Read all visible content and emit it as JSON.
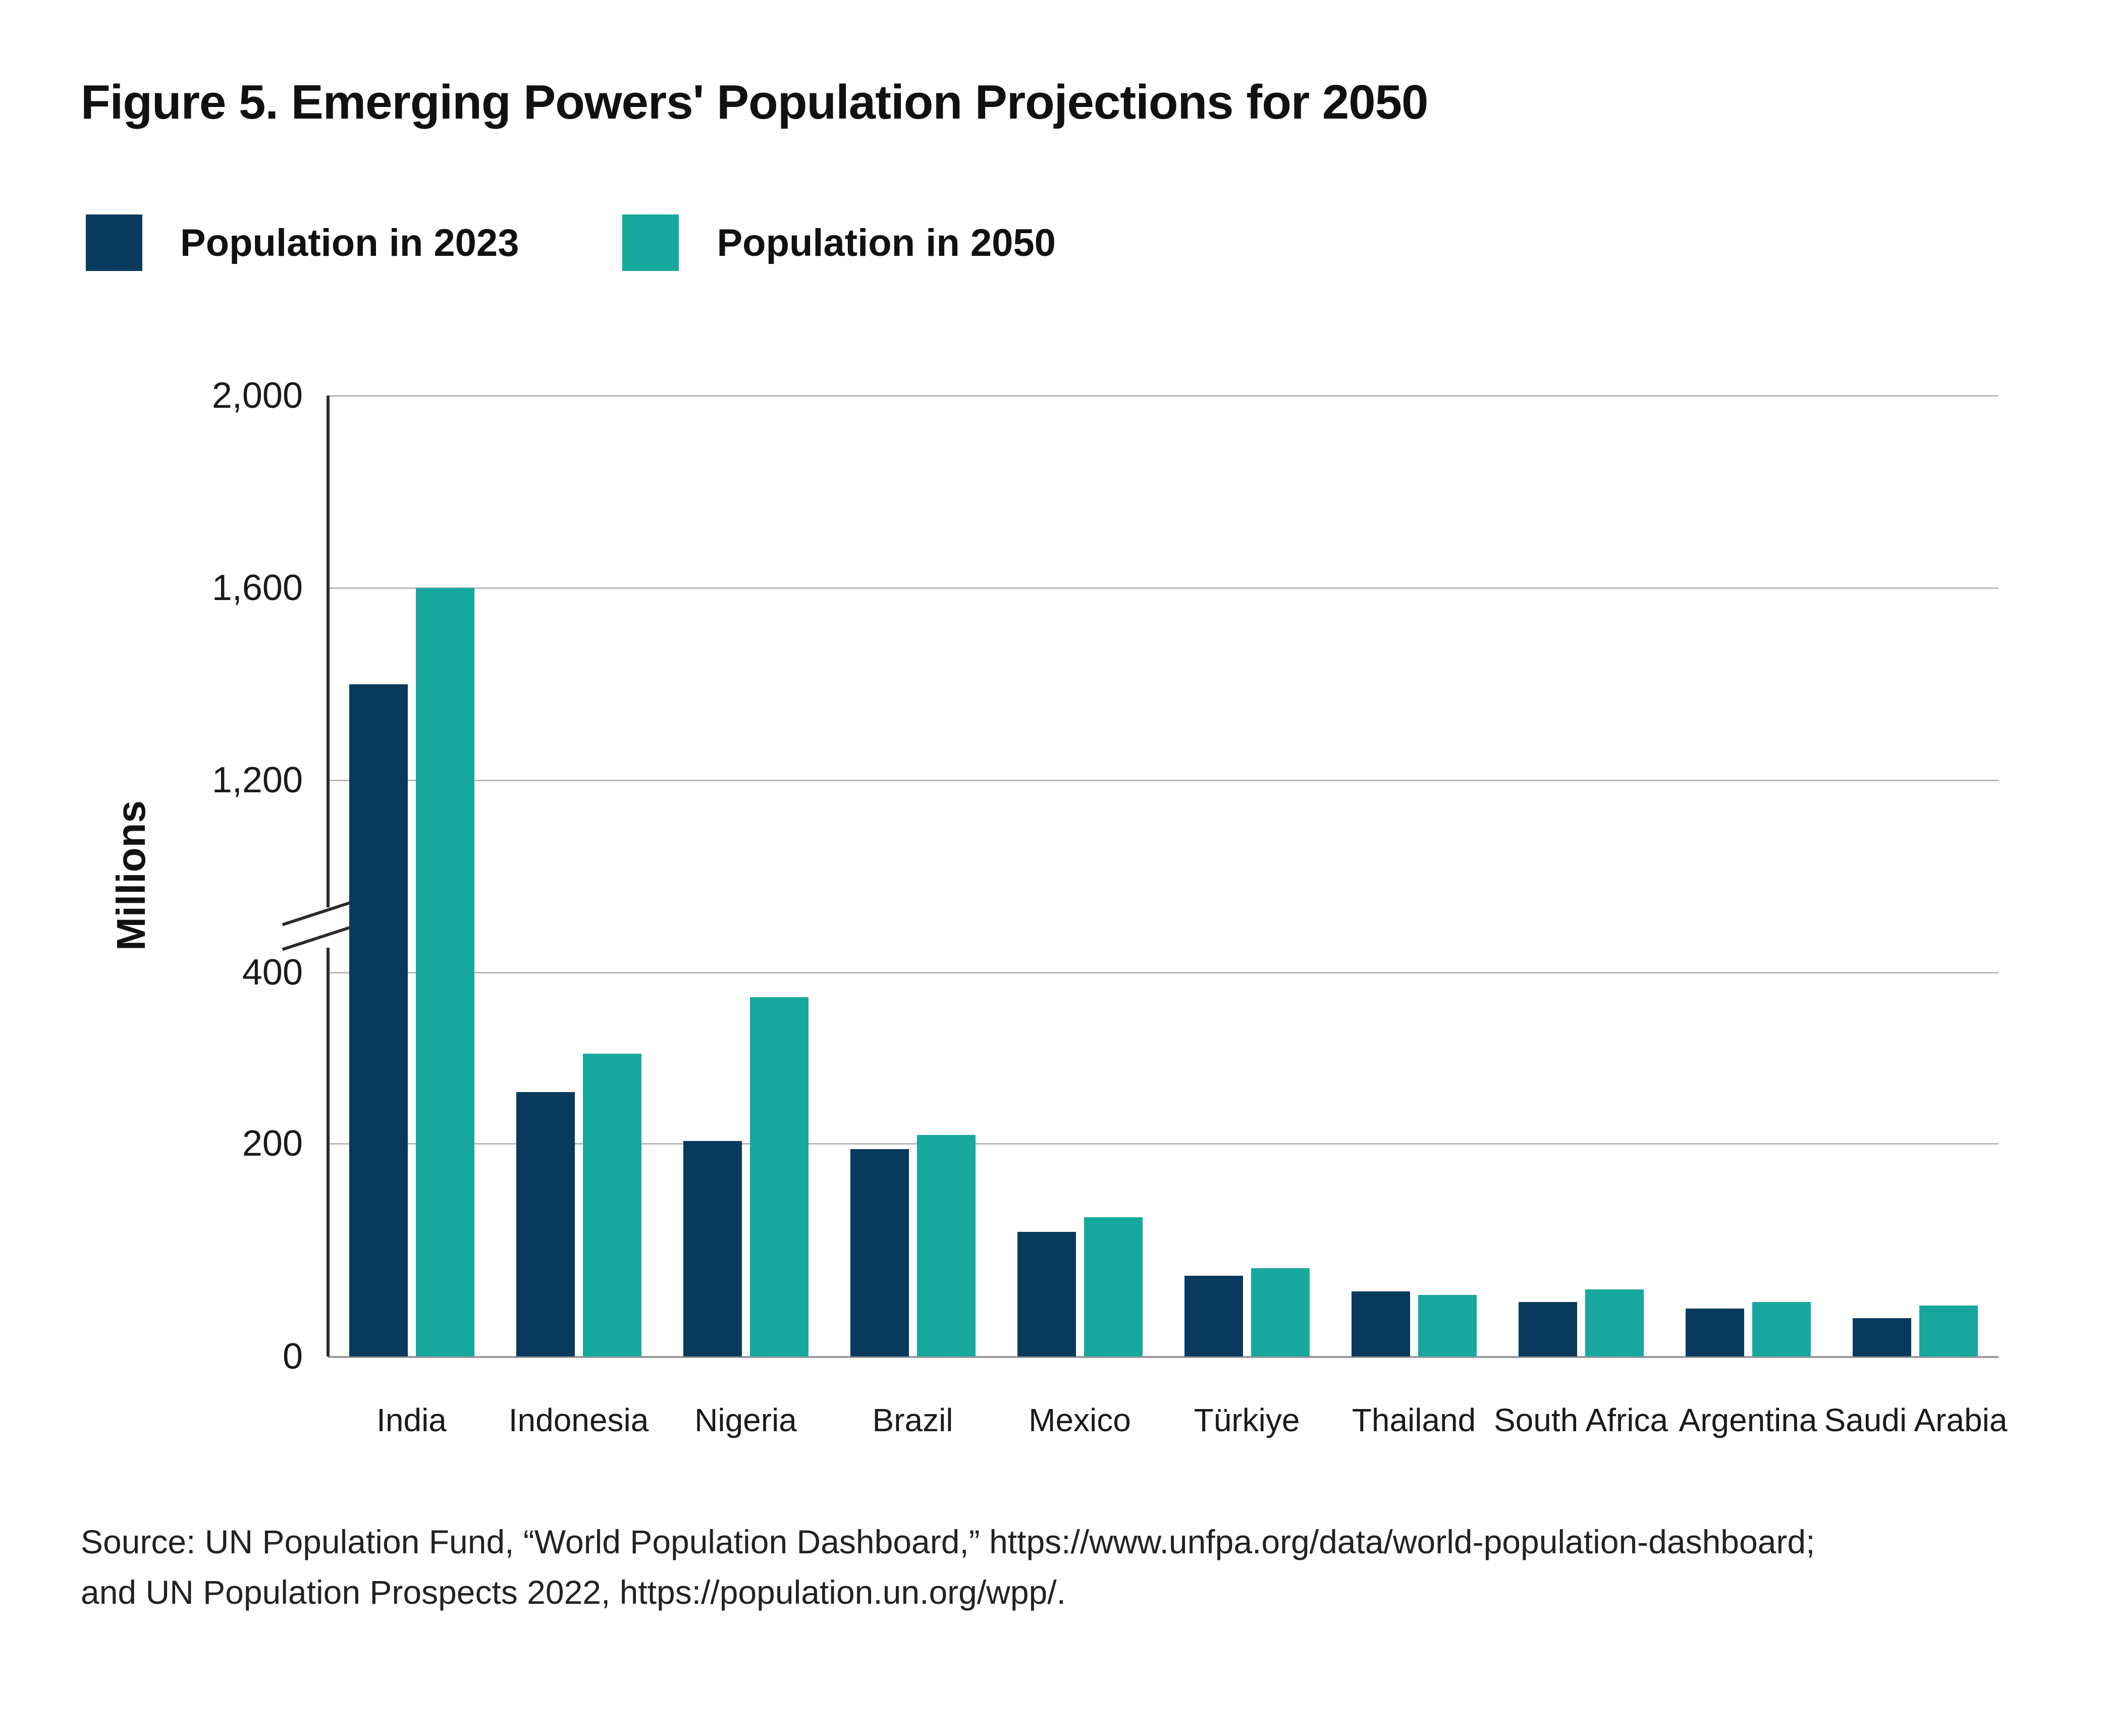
{
  "title": "Figure 5. Emerging Powers' Population Projections for 2050",
  "legend": {
    "items": [
      {
        "label": "Population in 2023",
        "color": "#093a5d"
      },
      {
        "label": "Population in 2050",
        "color": "#17a89d"
      }
    ]
  },
  "y_axis": {
    "title": "Millions",
    "tick_labels": [
      "2,000",
      "1,600",
      "1,200",
      "400",
      "200",
      "0"
    ]
  },
  "source_lines": [
    "Source: UN Population Fund, “World Population Dashboard,” https://www.unfpa.org/data/world-population-dashboard;",
    "and UN Population Prospects 2022,  https://population.un.org/wpp/."
  ],
  "chart_data": {
    "type": "bar",
    "title": "Figure 5. Emerging Powers' Population Projections for 2050",
    "ylabel": "Millions",
    "xlabel": "",
    "ylim": [
      0,
      2000
    ],
    "grid": true,
    "legend_position": "top-left",
    "axis_break": {
      "between": [
        400,
        1200
      ]
    },
    "ticks": [
      {
        "value": 0,
        "label": "0"
      },
      {
        "value": 200,
        "label": "200"
      },
      {
        "value": 400,
        "label": "400"
      },
      {
        "value": 1200,
        "label": "1,200"
      },
      {
        "value": 1600,
        "label": "1,600"
      },
      {
        "value": 2000,
        "label": "2,000"
      }
    ],
    "categories": [
      "India",
      "Indonesia",
      "Nigeria",
      "Brazil",
      "Mexico",
      "Türkiye",
      "Thailand",
      "South Africa",
      "Argentina",
      "Saudi Arabia"
    ],
    "series": [
      {
        "name": "Population in 2023",
        "color": "#093a5d",
        "values": [
          1400,
          260,
          203,
          195,
          117,
          76,
          61,
          51,
          45,
          36
        ]
      },
      {
        "name": "Population in 2050",
        "color": "#17a89d",
        "values": [
          1600,
          305,
          371,
          210,
          131,
          83,
          58,
          63,
          51,
          48
        ]
      }
    ]
  }
}
